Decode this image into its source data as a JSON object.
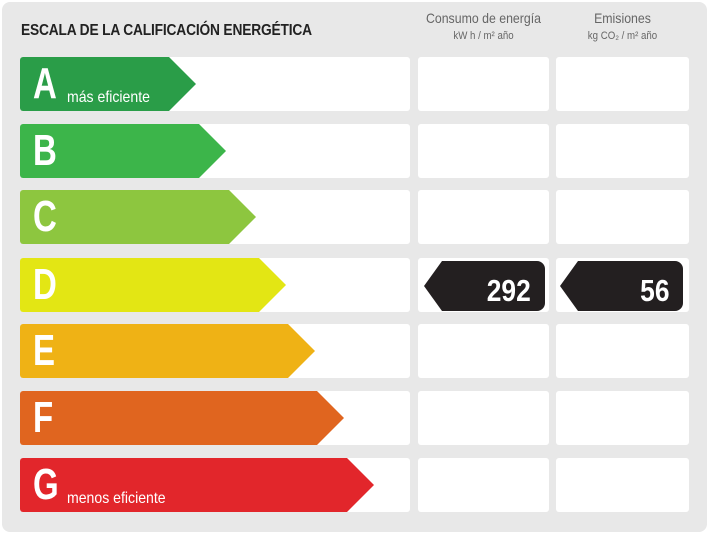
{
  "title": "ESCALA DE LA CALIFICACIÓN ENERGÉTICA",
  "columns": [
    {
      "label": "Consumo de energía",
      "unit": "kW h / m² año"
    },
    {
      "label": "Emisiones",
      "unit": "kg CO₂ / m² año"
    }
  ],
  "ratings": [
    {
      "letter": "A",
      "sublabel": "más eficiente",
      "color": "#2a9d48"
    },
    {
      "letter": "B",
      "sublabel": "",
      "color": "#3cb54a"
    },
    {
      "letter": "C",
      "sublabel": "",
      "color": "#8dc63f"
    },
    {
      "letter": "D",
      "sublabel": "",
      "color": "#e3e614"
    },
    {
      "letter": "E",
      "sublabel": "",
      "color": "#efb215"
    },
    {
      "letter": "F",
      "sublabel": "",
      "color": "#e0651f"
    },
    {
      "letter": "G",
      "sublabel": "menos eficiente",
      "color": "#e2262b"
    }
  ],
  "current_rating": "D",
  "consumption_value": "292",
  "emissions_value": "56",
  "badge_color": "#231f20"
}
